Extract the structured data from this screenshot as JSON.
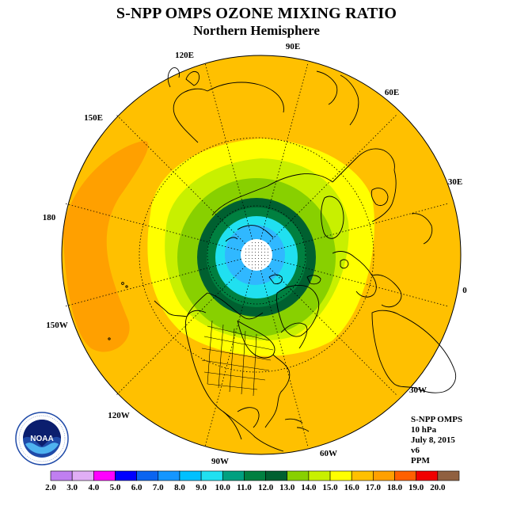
{
  "header": {
    "title": "S-NPP OMPS OZONE MIXING RATIO",
    "subtitle": "Northern Hemisphere"
  },
  "map": {
    "projection": "north polar stereographic",
    "longitude_labels": [
      "90E",
      "60E",
      "30E",
      "0",
      "30W",
      "60W",
      "90W",
      "120W",
      "150W",
      "180",
      "150E",
      "120E"
    ]
  },
  "info": {
    "instrument": "S-NPP OMPS",
    "level": "10 hPa",
    "date": "July 8, 2015",
    "version": "v6",
    "units": "PPM"
  },
  "colorbar": {
    "ticks": [
      "2.0",
      "3.0",
      "4.0",
      "5.0",
      "6.0",
      "7.0",
      "8.0",
      "9.0",
      "10.0",
      "11.0",
      "12.0",
      "13.0",
      "14.0",
      "15.0",
      "16.0",
      "17.0",
      "18.0",
      "19.0",
      "20.0"
    ],
    "colors": [
      "#c07ff0",
      "#e0aef5",
      "#ff00ff",
      "#0000ff",
      "#0a64f0",
      "#1496ff",
      "#00c0ff",
      "#20e0f0",
      "#00a080",
      "#008040",
      "#006030",
      "#88d000",
      "#c8f000",
      "#ffff00",
      "#ffc000",
      "#ffa000",
      "#ff6000",
      "#f00000",
      "#906040"
    ]
  },
  "logo": {
    "name": "noaa-logo",
    "text": "NOAA"
  }
}
